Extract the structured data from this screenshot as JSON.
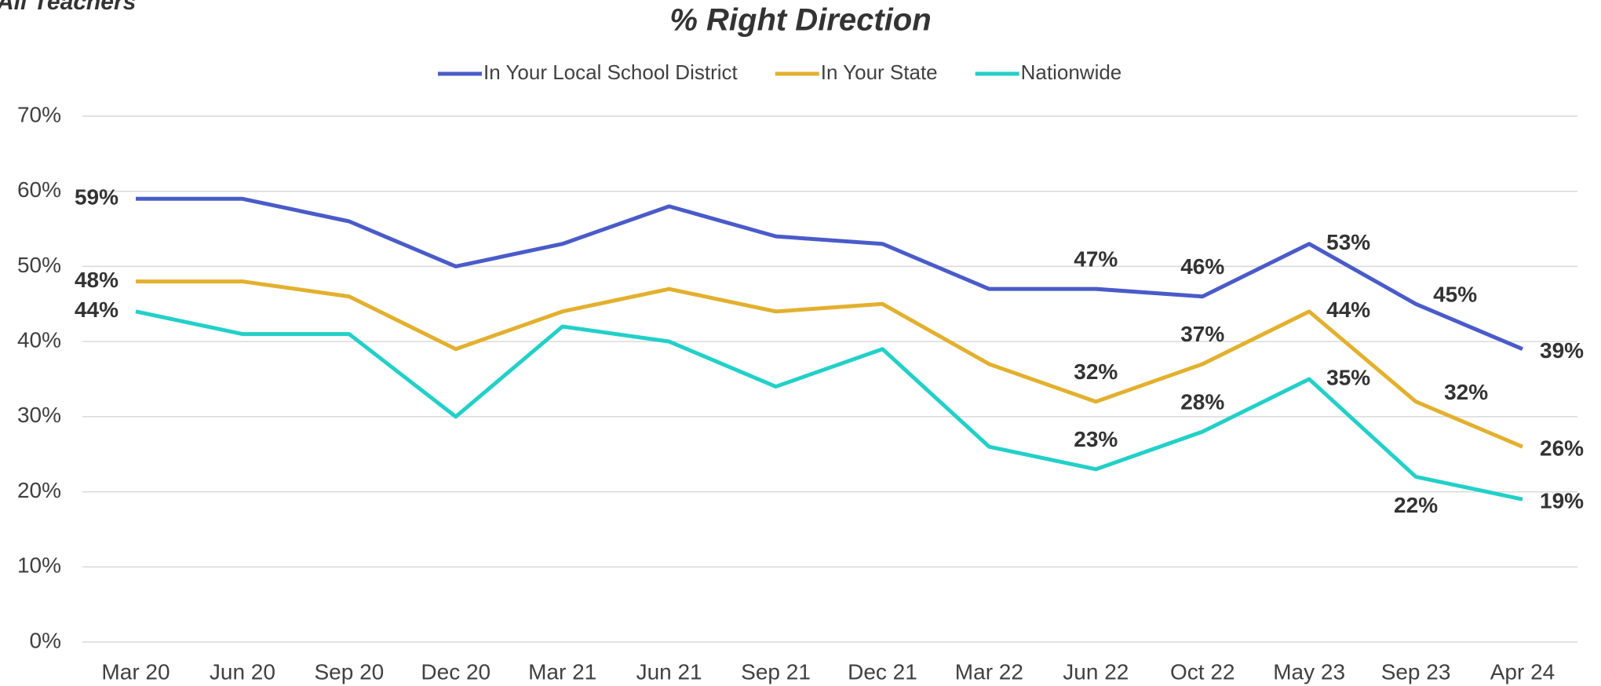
{
  "chart_data": {
    "type": "line",
    "subtitle": "All Teachers",
    "title": "% Right Direction",
    "categories": [
      "Mar 20",
      "Jun 20",
      "Sep 20",
      "Dec 20",
      "Mar 21",
      "Jun 21",
      "Sep 21",
      "Dec 21",
      "Mar 22",
      "Jun 22",
      "Oct 22",
      "May 23",
      "Sep 23",
      "Apr 24"
    ],
    "series": [
      {
        "name": "In Your Local School District",
        "color": "#4a5bc9",
        "values": [
          59,
          59,
          56,
          50,
          53,
          58,
          54,
          53,
          47,
          47,
          46,
          53,
          45,
          39
        ],
        "value_labels": [
          "59%",
          null,
          null,
          null,
          null,
          null,
          null,
          null,
          null,
          "47%",
          "46%",
          "53%",
          "45%",
          "39%"
        ]
      },
      {
        "name": "In Your State",
        "color": "#e3b02e",
        "values": [
          48,
          48,
          46,
          39,
          44,
          47,
          44,
          45,
          37,
          32,
          37,
          44,
          32,
          26
        ],
        "value_labels": [
          "48%",
          null,
          null,
          null,
          null,
          null,
          null,
          null,
          null,
          "32%",
          "37%",
          "44%",
          "32%",
          "26%"
        ]
      },
      {
        "name": "Nationwide",
        "color": "#22d0c8",
        "values": [
          44,
          41,
          41,
          30,
          42,
          40,
          34,
          39,
          26,
          23,
          28,
          35,
          22,
          19
        ],
        "value_labels": [
          "44%",
          null,
          null,
          null,
          null,
          null,
          null,
          null,
          null,
          "23%",
          "28%",
          "35%",
          "22%",
          "19%"
        ]
      }
    ],
    "ylim": [
      0,
      70
    ],
    "yticks": [
      {
        "value": 0,
        "label": "0%"
      },
      {
        "value": 10,
        "label": "10%"
      },
      {
        "value": 20,
        "label": "20%"
      },
      {
        "value": 30,
        "label": "30%"
      },
      {
        "value": 40,
        "label": "40%"
      },
      {
        "value": 50,
        "label": "50%"
      },
      {
        "value": 60,
        "label": "60%"
      },
      {
        "value": 70,
        "label": "70%"
      }
    ],
    "grid": true,
    "legend": "top"
  }
}
